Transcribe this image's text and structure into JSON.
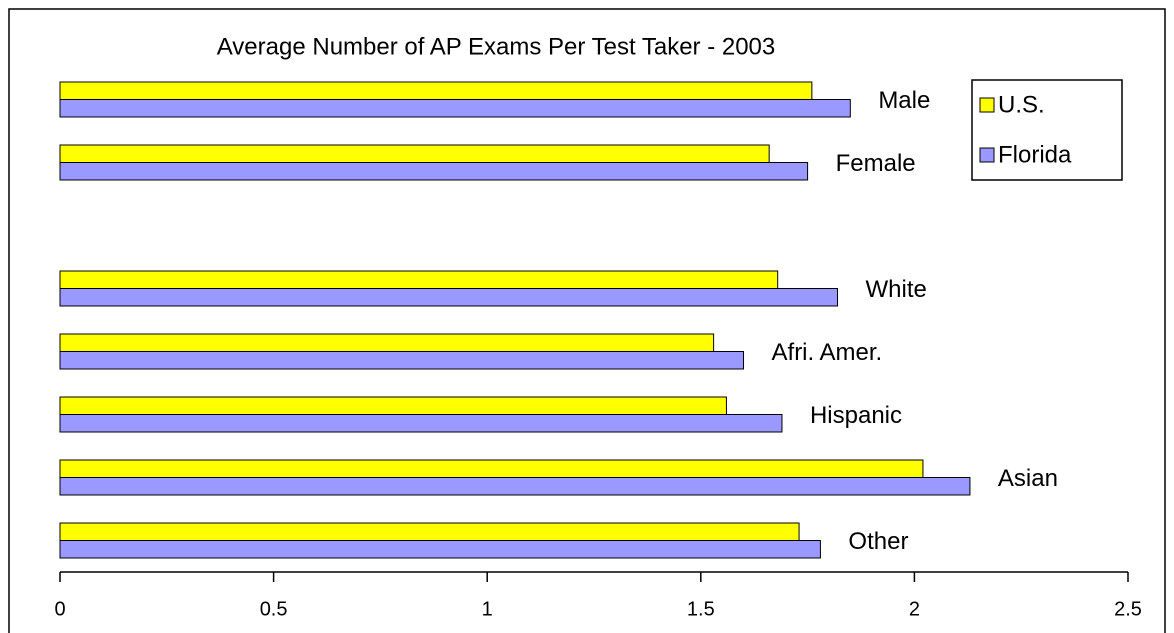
{
  "chart_data": {
    "type": "hbar",
    "title": "Average Number of AP Exams Per Test Taker - 2003",
    "categories": [
      "Male",
      "Female",
      null,
      "White",
      "Afri. Amer.",
      "Hispanic",
      "Asian",
      "Other"
    ],
    "series": [
      {
        "name": "U.S.",
        "color": "#ffff00",
        "values": [
          1.76,
          1.66,
          null,
          1.68,
          1.53,
          1.56,
          2.02,
          1.73
        ]
      },
      {
        "name": "Florida",
        "color": "#9999ff",
        "values": [
          1.85,
          1.75,
          null,
          1.82,
          1.6,
          1.69,
          2.13,
          1.78
        ]
      }
    ],
    "xlim": [
      0,
      2.5
    ],
    "xticks": [
      0,
      0.5,
      1,
      1.5,
      2,
      2.5
    ],
    "legend": "top-right"
  }
}
